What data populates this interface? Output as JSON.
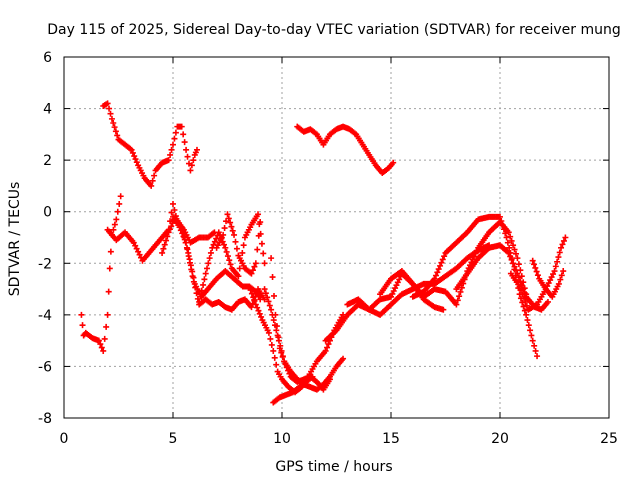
{
  "chart_data": {
    "type": "scatter",
    "title": "Day 115 of 2025, Sidereal Day-to-day VTEC variation (SDTVAR) for receiver mung",
    "xlabel": "GPS time / hours",
    "ylabel": "SDTVAR / TECUs",
    "xlim": [
      0,
      25
    ],
    "ylim": [
      -8,
      6
    ],
    "xticks": [
      0,
      5,
      10,
      15,
      20,
      25
    ],
    "yticks": [
      -8,
      -6,
      -4,
      -2,
      0,
      2,
      4,
      6
    ],
    "xtick_labels": [
      "0",
      "5",
      "10",
      "15",
      "20",
      "25"
    ],
    "ytick_labels": [
      "-8",
      "-6",
      "-4",
      "-2",
      "0",
      "2",
      "4",
      "6"
    ],
    "grid": true,
    "marker": "+",
    "series_color": "#ff0000",
    "series": [
      {
        "name": "track-1",
        "x": [
          1.8,
          2.0,
          2.2,
          2.5,
          2.8,
          3.1,
          3.4,
          3.7,
          4.0,
          4.2,
          4.5,
          4.8,
          5.0,
          5.2,
          5.4,
          5.6,
          5.8,
          6.0,
          6.1
        ],
        "y": [
          4.1,
          4.2,
          3.6,
          2.8,
          2.6,
          2.4,
          1.8,
          1.3,
          1.0,
          1.6,
          1.9,
          2.0,
          2.6,
          3.3,
          3.3,
          2.4,
          1.6,
          2.2,
          2.4
        ]
      },
      {
        "name": "track-2",
        "x": [
          10.7,
          11.0,
          11.3,
          11.6,
          11.9,
          12.2,
          12.5,
          12.8,
          13.1,
          13.4,
          13.7,
          14.0,
          14.3,
          14.6,
          14.9,
          15.1
        ],
        "y": [
          3.3,
          3.1,
          3.2,
          3.0,
          2.6,
          3.0,
          3.2,
          3.3,
          3.2,
          3.0,
          2.6,
          2.2,
          1.8,
          1.5,
          1.7,
          1.9
        ]
      },
      {
        "name": "track-3",
        "x": [
          0.8,
          0.9,
          1.0,
          1.3,
          1.6,
          1.8,
          2.0,
          2.1,
          2.2,
          2.4,
          2.6
        ],
        "y": [
          -4.0,
          -4.8,
          -4.7,
          -4.9,
          -5.0,
          -5.4,
          -4.0,
          -2.2,
          -0.9,
          -0.3,
          0.6
        ]
      },
      {
        "name": "track-4",
        "x": [
          2.0,
          2.4,
          2.8,
          3.2,
          3.6,
          4.0,
          4.4,
          4.8,
          5.0,
          5.2,
          5.5,
          5.8,
          6.2,
          6.6,
          6.9
        ],
        "y": [
          -0.7,
          -1.1,
          -0.8,
          -1.2,
          -1.9,
          -1.5,
          -1.1,
          -0.7,
          0.3,
          -0.4,
          -0.7,
          -1.2,
          -1.0,
          -1.0,
          -0.8
        ]
      },
      {
        "name": "track-5",
        "x": [
          4.5,
          4.8,
          5.1,
          5.4,
          5.7,
          6.0,
          6.3,
          6.6,
          7.0,
          7.4,
          7.8,
          8.2,
          8.5,
          8.8,
          9.0
        ],
        "y": [
          -1.6,
          -0.8,
          -0.2,
          -0.6,
          -1.6,
          -2.8,
          -3.3,
          -3.0,
          -2.6,
          -2.3,
          -2.6,
          -2.9,
          -2.9,
          -3.1,
          -3.4
        ]
      },
      {
        "name": "track-6",
        "x": [
          5.0,
          5.3,
          5.6,
          5.9,
          6.2,
          6.5,
          6.8,
          7.1,
          7.4,
          7.7,
          8.0,
          8.3,
          8.6,
          8.9,
          9.2
        ],
        "y": [
          -0.2,
          -0.6,
          -1.2,
          -2.5,
          -3.6,
          -3.4,
          -3.6,
          -3.5,
          -3.7,
          -3.8,
          -3.5,
          -3.4,
          -3.7,
          -3.0,
          -3.4
        ]
      },
      {
        "name": "track-7",
        "x": [
          6.2,
          6.5,
          6.8,
          7.1,
          7.4,
          7.7,
          8.0,
          8.3,
          8.6,
          8.9,
          9.2
        ],
        "y": [
          -3.5,
          -2.4,
          -1.4,
          -0.8,
          -1.4,
          -2.2,
          -2.5,
          -1.0,
          -0.5,
          -0.1,
          -2.0
        ]
      },
      {
        "name": "track-8",
        "x": [
          7.0,
          7.3,
          7.5,
          7.8,
          8.0,
          8.3,
          8.6,
          8.8,
          9.0
        ],
        "y": [
          -1.4,
          -0.9,
          -0.1,
          -0.9,
          -1.7,
          -2.2,
          -2.4,
          -2.0,
          -0.4
        ]
      },
      {
        "name": "track-9",
        "x": [
          8.5,
          8.8,
          9.1,
          9.4,
          9.6,
          9.8,
          10.0,
          10.3,
          10.6,
          10.9,
          11.2,
          11.6,
          12.0,
          12.4,
          12.8
        ],
        "y": [
          -2.9,
          -3.6,
          -4.2,
          -4.7,
          -5.4,
          -6.2,
          -6.5,
          -6.8,
          -7.0,
          -6.8,
          -6.4,
          -5.8,
          -5.4,
          -4.6,
          -4.0
        ]
      },
      {
        "name": "track-10",
        "x": [
          9.2,
          9.5,
          9.8,
          10.1,
          10.4,
          10.7,
          11.0,
          11.3,
          11.6,
          11.9,
          12.2,
          12.5,
          12.8
        ],
        "y": [
          -3.0,
          -3.8,
          -4.8,
          -5.8,
          -6.2,
          -6.5,
          -6.7,
          -6.8,
          -6.9,
          -6.7,
          -6.4,
          -6.0,
          -5.7
        ]
      },
      {
        "name": "track-11",
        "x": [
          9.5,
          9.7,
          9.9,
          10.1,
          10.4,
          10.7,
          11.0,
          11.3,
          11.6,
          11.9,
          12.2
        ],
        "y": [
          -1.8,
          -4.0,
          -5.3,
          -5.8,
          -6.4,
          -6.6,
          -6.5,
          -6.4,
          -6.6,
          -6.9,
          -6.5
        ]
      },
      {
        "name": "track-12",
        "x": [
          9.6,
          9.9,
          10.2,
          10.5,
          10.8,
          11.1,
          11.4
        ],
        "y": [
          -7.4,
          -7.2,
          -7.1,
          -7.0,
          -6.8,
          -6.6,
          -6.4
        ]
      },
      {
        "name": "track-13",
        "x": [
          12.0,
          12.5,
          13.0,
          13.5,
          14.0,
          14.5,
          15.0,
          15.5,
          16.0,
          16.5,
          17.0,
          17.4
        ],
        "y": [
          -5.0,
          -4.6,
          -4.0,
          -3.6,
          -3.8,
          -3.4,
          -3.3,
          -2.4,
          -2.8,
          -3.4,
          -3.7,
          -3.8
        ]
      },
      {
        "name": "track-14",
        "x": [
          13.0,
          13.5,
          14.0,
          14.5,
          15.0,
          15.5,
          16.0,
          16.5,
          17.0,
          17.5,
          18.0,
          18.5,
          19.0,
          19.5
        ],
        "y": [
          -3.6,
          -3.4,
          -3.8,
          -4.0,
          -3.6,
          -3.2,
          -3.0,
          -2.8,
          -2.8,
          -2.5,
          -2.2,
          -1.8,
          -1.5,
          -1.3
        ]
      },
      {
        "name": "track-15",
        "x": [
          14.5,
          15.0,
          15.5,
          16.0,
          16.5,
          17.0,
          17.5,
          18.0,
          18.5,
          19.0,
          19.5,
          20.0,
          20.4,
          20.8,
          21.2
        ],
        "y": [
          -3.2,
          -2.6,
          -2.3,
          -2.8,
          -3.3,
          -3.0,
          -3.1,
          -3.6,
          -2.3,
          -1.4,
          -0.8,
          -0.4,
          -0.8,
          -1.8,
          -3.2
        ]
      },
      {
        "name": "track-16",
        "x": [
          16.0,
          16.5,
          17.0,
          17.5,
          18.0,
          18.5,
          19.0,
          19.5,
          20.0,
          20.3,
          20.6,
          20.9,
          21.2,
          21.5,
          21.7
        ],
        "y": [
          -3.3,
          -3.1,
          -2.6,
          -1.6,
          -1.2,
          -0.8,
          -0.3,
          -0.2,
          -0.2,
          -1.0,
          -2.0,
          -3.2,
          -4.0,
          -5.0,
          -5.6
        ]
      },
      {
        "name": "track-17",
        "x": [
          18.0,
          18.5,
          19.0,
          19.5,
          20.0,
          20.4,
          20.8,
          21.2,
          21.6,
          21.9,
          22.2
        ],
        "y": [
          -3.0,
          -2.4,
          -1.8,
          -1.4,
          -1.3,
          -1.6,
          -2.4,
          -3.3,
          -3.7,
          -3.8,
          -3.5
        ]
      },
      {
        "name": "track-18",
        "x": [
          20.5,
          20.9,
          21.3,
          21.7,
          22.1,
          22.5,
          22.8,
          23.0
        ],
        "y": [
          -2.4,
          -2.9,
          -3.8,
          -3.6,
          -3.0,
          -2.3,
          -1.4,
          -1.0
        ]
      },
      {
        "name": "track-19",
        "x": [
          21.5,
          21.8,
          22.1,
          22.4,
          22.7,
          22.9
        ],
        "y": [
          -1.9,
          -2.6,
          -3.0,
          -3.3,
          -2.8,
          -2.3
        ]
      }
    ]
  }
}
